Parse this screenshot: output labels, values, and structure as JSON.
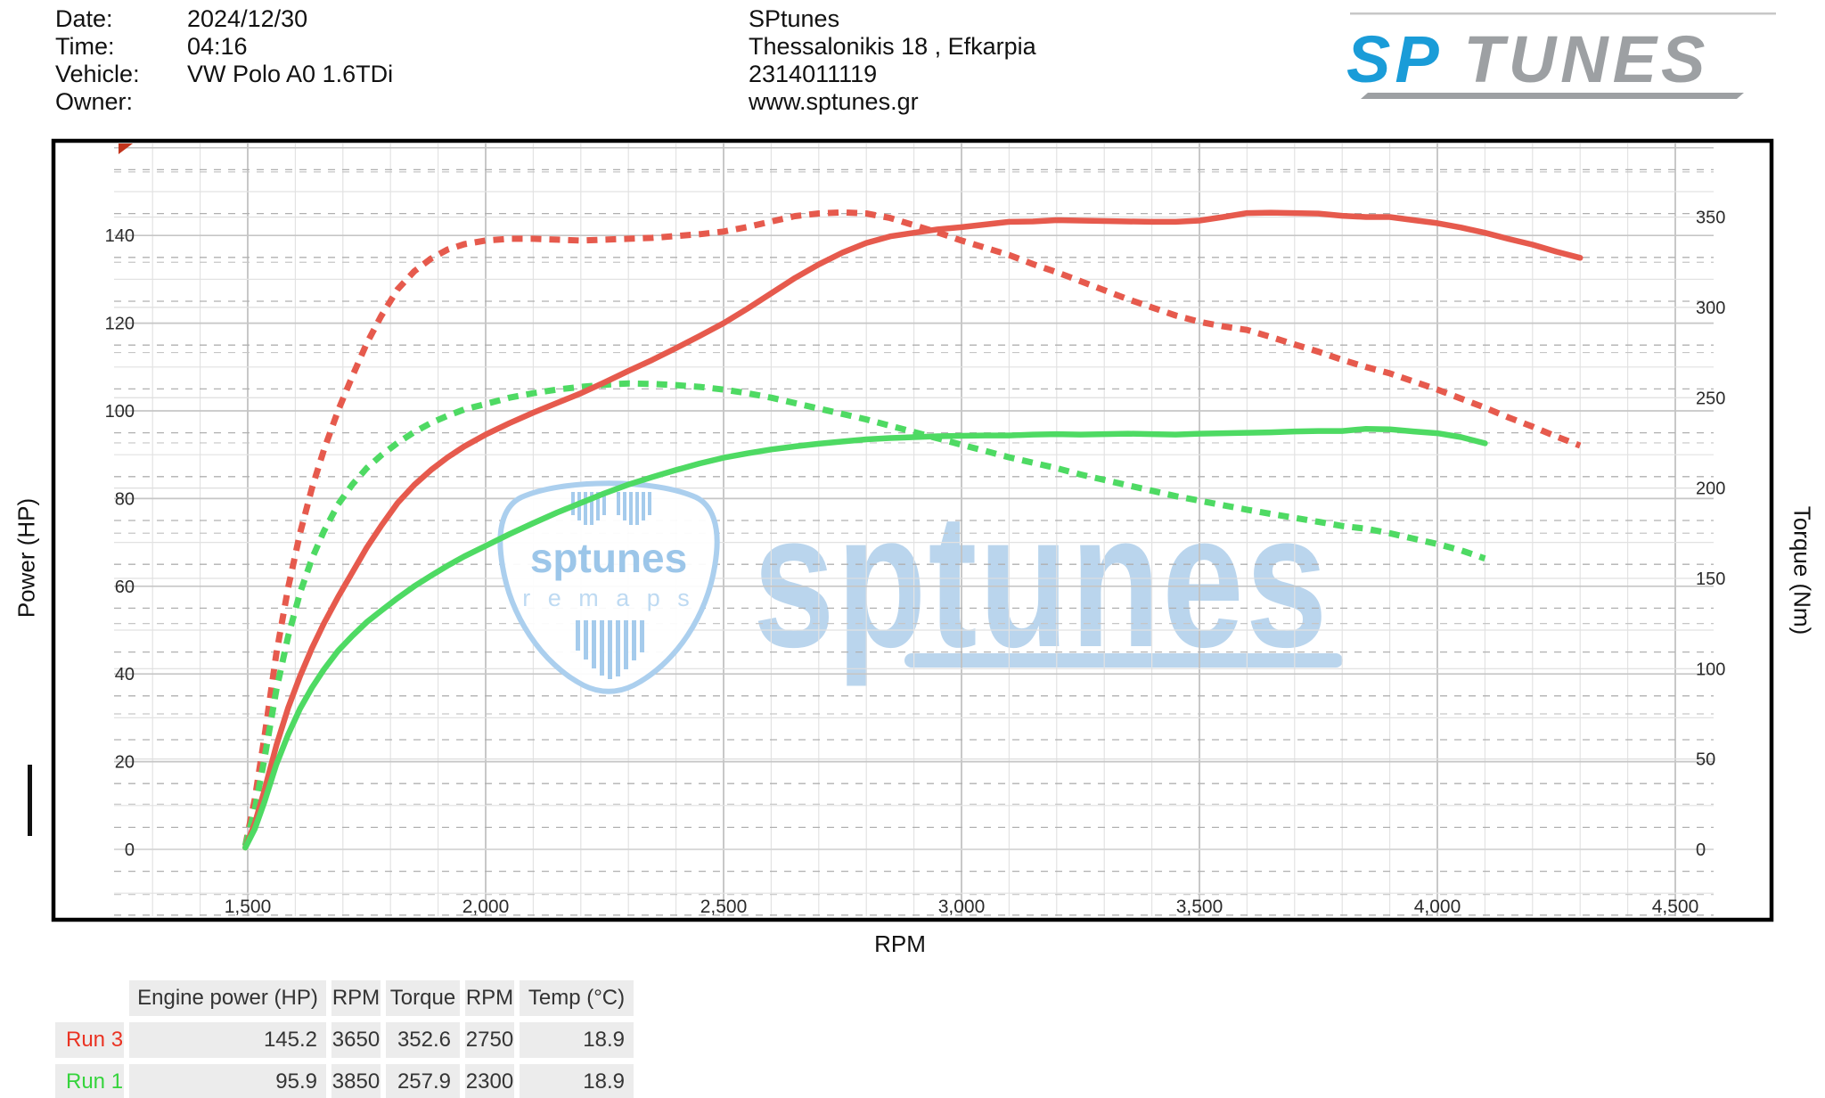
{
  "header": {
    "info_left": [
      {
        "label": "Date:",
        "value": "2024/12/30"
      },
      {
        "label": "Time:",
        "value": "04:16"
      },
      {
        "label": "Vehicle:",
        "value": "VW Polo A0 1.6TDi"
      },
      {
        "label": "Owner:",
        "value": ""
      }
    ],
    "info_center": [
      "SPtunes",
      "Thessalonikis 18 , Efkarpia",
      "2314011119",
      "www.sptunes.gr"
    ],
    "logo": {
      "sp": "SP",
      "tunes": "TUNES",
      "blue": "#1a9cd8",
      "gray": "#9da0a3"
    }
  },
  "watermark": {
    "big_text": "sptunes",
    "pick_title": "sptunes",
    "pick_subtitle": "r e m a p s",
    "color": "#a9cbe9"
  },
  "chart_data": {
    "type": "line",
    "xlabel": "RPM",
    "ylabel_left": "Power (HP)",
    "ylabel_right": "Torque (Nm)",
    "grid": true,
    "legend_position": "none",
    "x_ticks": [
      {
        "v": 1500,
        "label": "1,500"
      },
      {
        "v": 2000,
        "label": "2,000"
      },
      {
        "v": 2500,
        "label": "2,500"
      },
      {
        "v": 3000,
        "label": "3,000"
      },
      {
        "v": 3500,
        "label": "3,500"
      },
      {
        "v": 4000,
        "label": "4,000"
      },
      {
        "v": 4500,
        "label": "4,500"
      }
    ],
    "hp_ticks": [
      0,
      20,
      40,
      60,
      80,
      100,
      120,
      140
    ],
    "nm_ticks": [
      0,
      50,
      100,
      150,
      200,
      250,
      300,
      350
    ],
    "axis_ranges": {
      "rpm": [
        1219,
        4580
      ],
      "hp": [
        -15.6,
        161.6
      ],
      "nm": [
        -38,
        392
      ]
    },
    "series": [
      {
        "name": "Run 3 Torque (Nm)",
        "axis": "nm",
        "style": "dashed",
        "color": "#e65a4d",
        "points": [
          [
            1495,
            2
          ],
          [
            1515,
            28
          ],
          [
            1535,
            62
          ],
          [
            1560,
            108
          ],
          [
            1585,
            145
          ],
          [
            1610,
            175
          ],
          [
            1635,
            200
          ],
          [
            1660,
            221
          ],
          [
            1690,
            243
          ],
          [
            1720,
            262
          ],
          [
            1750,
            280
          ],
          [
            1780,
            295
          ],
          [
            1815,
            310
          ],
          [
            1850,
            320
          ],
          [
            1885,
            327
          ],
          [
            1920,
            332
          ],
          [
            1955,
            335
          ],
          [
            2000,
            337
          ],
          [
            2050,
            338
          ],
          [
            2100,
            338
          ],
          [
            2150,
            337.5
          ],
          [
            2200,
            337
          ],
          [
            2250,
            337.5
          ],
          [
            2300,
            338
          ],
          [
            2350,
            338.5
          ],
          [
            2400,
            339.5
          ],
          [
            2450,
            340.5
          ],
          [
            2500,
            342
          ],
          [
            2550,
            344.5
          ],
          [
            2600,
            347.5
          ],
          [
            2650,
            350.5
          ],
          [
            2700,
            352
          ],
          [
            2750,
            352.6
          ],
          [
            2800,
            352
          ],
          [
            2850,
            349.5
          ],
          [
            2900,
            345.5
          ],
          [
            2950,
            341.5
          ],
          [
            3000,
            337
          ],
          [
            3050,
            333
          ],
          [
            3100,
            329
          ],
          [
            3150,
            324
          ],
          [
            3200,
            319.5
          ],
          [
            3250,
            314.5
          ],
          [
            3300,
            309.5
          ],
          [
            3350,
            304.5
          ],
          [
            3400,
            300
          ],
          [
            3450,
            295.5
          ],
          [
            3500,
            292
          ],
          [
            3550,
            289.5
          ],
          [
            3600,
            287.5
          ],
          [
            3650,
            283.6
          ],
          [
            3700,
            279.5
          ],
          [
            3750,
            275.5
          ],
          [
            3800,
            271
          ],
          [
            3850,
            267
          ],
          [
            3900,
            263.5
          ],
          [
            3950,
            259
          ],
          [
            4000,
            254.5
          ],
          [
            4050,
            249.5
          ],
          [
            4100,
            244.5
          ],
          [
            4150,
            239
          ],
          [
            4200,
            234
          ],
          [
            4250,
            228.5
          ],
          [
            4300,
            223.5
          ]
        ]
      },
      {
        "name": "Run 1 Torque (Nm)",
        "axis": "nm",
        "style": "dashed",
        "color": "#4eda63",
        "points": [
          [
            1495,
            2
          ],
          [
            1515,
            22
          ],
          [
            1535,
            50
          ],
          [
            1560,
            88
          ],
          [
            1585,
            118
          ],
          [
            1610,
            142
          ],
          [
            1635,
            161
          ],
          [
            1660,
            176
          ],
          [
            1690,
            191
          ],
          [
            1720,
            202
          ],
          [
            1750,
            211
          ],
          [
            1780,
            218
          ],
          [
            1815,
            225
          ],
          [
            1850,
            231
          ],
          [
            1885,
            236
          ],
          [
            1920,
            240
          ],
          [
            1955,
            243.5
          ],
          [
            2000,
            246.5
          ],
          [
            2050,
            250
          ],
          [
            2100,
            252.5
          ],
          [
            2150,
            254.5
          ],
          [
            2200,
            256
          ],
          [
            2250,
            257.2
          ],
          [
            2300,
            257.9
          ],
          [
            2350,
            257.6
          ],
          [
            2400,
            257
          ],
          [
            2450,
            256
          ],
          [
            2500,
            254.5
          ],
          [
            2550,
            252.5
          ],
          [
            2600,
            250
          ],
          [
            2650,
            247
          ],
          [
            2700,
            244
          ],
          [
            2750,
            241
          ],
          [
            2800,
            238
          ],
          [
            2850,
            234.5
          ],
          [
            2900,
            231
          ],
          [
            2950,
            227.5
          ],
          [
            3000,
            224
          ],
          [
            3050,
            220.5
          ],
          [
            3100,
            217
          ],
          [
            3150,
            214
          ],
          [
            3200,
            211
          ],
          [
            3250,
            207.5
          ],
          [
            3300,
            204.5
          ],
          [
            3350,
            201.5
          ],
          [
            3400,
            198.5
          ],
          [
            3450,
            195.5
          ],
          [
            3500,
            193
          ],
          [
            3550,
            190.5
          ],
          [
            3600,
            188
          ],
          [
            3650,
            185.7
          ],
          [
            3700,
            183.5
          ],
          [
            3750,
            181.3
          ],
          [
            3800,
            179
          ],
          [
            3850,
            177.5
          ],
          [
            3900,
            175
          ],
          [
            3950,
            172
          ],
          [
            4000,
            169
          ],
          [
            4050,
            165.5
          ],
          [
            4100,
            161
          ]
        ]
      },
      {
        "name": "Run 3 Power (HP)",
        "axis": "hp",
        "style": "solid",
        "color": "#e65a4d",
        "points": [
          [
            1495,
            0.4
          ],
          [
            1515,
            6
          ],
          [
            1535,
            13.4
          ],
          [
            1560,
            23.6
          ],
          [
            1585,
            32.3
          ],
          [
            1610,
            39.5
          ],
          [
            1635,
            45.9
          ],
          [
            1660,
            51.5
          ],
          [
            1690,
            57.6
          ],
          [
            1720,
            63.2
          ],
          [
            1750,
            68.8
          ],
          [
            1780,
            73.7
          ],
          [
            1815,
            79
          ],
          [
            1850,
            83.1
          ],
          [
            1885,
            86.5
          ],
          [
            1920,
            89.4
          ],
          [
            1955,
            91.9
          ],
          [
            2000,
            94.6
          ],
          [
            2050,
            97.2
          ],
          [
            2100,
            99.6
          ],
          [
            2150,
            101.8
          ],
          [
            2200,
            104
          ],
          [
            2250,
            106.5
          ],
          [
            2300,
            109.1
          ],
          [
            2350,
            111.6
          ],
          [
            2400,
            114.3
          ],
          [
            2450,
            117.1
          ],
          [
            2500,
            120
          ],
          [
            2550,
            123.3
          ],
          [
            2600,
            126.8
          ],
          [
            2650,
            130.3
          ],
          [
            2700,
            133.4
          ],
          [
            2750,
            136.1
          ],
          [
            2800,
            138.3
          ],
          [
            2850,
            139.8
          ],
          [
            2900,
            140.6
          ],
          [
            2950,
            141.4
          ],
          [
            3000,
            141.9
          ],
          [
            3050,
            142.5
          ],
          [
            3100,
            143.1
          ],
          [
            3150,
            143.2
          ],
          [
            3200,
            143.5
          ],
          [
            3250,
            143.4
          ],
          [
            3300,
            143.3
          ],
          [
            3350,
            143.2
          ],
          [
            3400,
            143.1
          ],
          [
            3450,
            143.1
          ],
          [
            3500,
            143.4
          ],
          [
            3550,
            144.2
          ],
          [
            3600,
            145.1
          ],
          [
            3650,
            145.2
          ],
          [
            3700,
            145.1
          ],
          [
            3750,
            145
          ],
          [
            3800,
            144.5
          ],
          [
            3850,
            144.2
          ],
          [
            3900,
            144.2
          ],
          [
            3950,
            143.5
          ],
          [
            4000,
            142.8
          ],
          [
            4050,
            141.8
          ],
          [
            4100,
            140.6
          ],
          [
            4150,
            139.2
          ],
          [
            4200,
            137.9
          ],
          [
            4250,
            136.3
          ],
          [
            4300,
            134.9
          ]
        ]
      },
      {
        "name": "Run 1 Power (HP)",
        "axis": "hp",
        "style": "solid",
        "color": "#4eda63",
        "points": [
          [
            1495,
            0.4
          ],
          [
            1515,
            4.7
          ],
          [
            1535,
            10.8
          ],
          [
            1560,
            19.3
          ],
          [
            1585,
            26.2
          ],
          [
            1610,
            32.1
          ],
          [
            1635,
            36.9
          ],
          [
            1660,
            41
          ],
          [
            1690,
            45.3
          ],
          [
            1720,
            48.7
          ],
          [
            1750,
            51.8
          ],
          [
            1780,
            54.4
          ],
          [
            1815,
            57.3
          ],
          [
            1850,
            60
          ],
          [
            1885,
            62.4
          ],
          [
            1920,
            64.7
          ],
          [
            1955,
            66.8
          ],
          [
            2000,
            69.2
          ],
          [
            2050,
            71.9
          ],
          [
            2100,
            74.4
          ],
          [
            2150,
            76.8
          ],
          [
            2200,
            79
          ],
          [
            2250,
            81.2
          ],
          [
            2300,
            83.2
          ],
          [
            2350,
            84.9
          ],
          [
            2400,
            86.5
          ],
          [
            2450,
            88
          ],
          [
            2500,
            89.3
          ],
          [
            2550,
            90.3
          ],
          [
            2600,
            91.2
          ],
          [
            2650,
            91.9
          ],
          [
            2700,
            92.5
          ],
          [
            2750,
            93
          ],
          [
            2800,
            93.5
          ],
          [
            2850,
            93.8
          ],
          [
            2900,
            94
          ],
          [
            2950,
            94.2
          ],
          [
            3000,
            94.3
          ],
          [
            3050,
            94.4
          ],
          [
            3100,
            94.4
          ],
          [
            3150,
            94.6
          ],
          [
            3200,
            94.7
          ],
          [
            3250,
            94.6
          ],
          [
            3300,
            94.7
          ],
          [
            3350,
            94.8
          ],
          [
            3400,
            94.7
          ],
          [
            3450,
            94.6
          ],
          [
            3500,
            94.8
          ],
          [
            3550,
            94.9
          ],
          [
            3600,
            95
          ],
          [
            3650,
            95.1
          ],
          [
            3700,
            95.3
          ],
          [
            3750,
            95.4
          ],
          [
            3800,
            95.4
          ],
          [
            3850,
            95.9
          ],
          [
            3900,
            95.8
          ],
          [
            3950,
            95.3
          ],
          [
            4000,
            94.9
          ],
          [
            4050,
            94
          ],
          [
            4100,
            92.6
          ]
        ]
      }
    ]
  },
  "table": {
    "headers": [
      "",
      "Engine power (HP)",
      "RPM",
      "Torque",
      "RPM",
      "Temp (°C)"
    ],
    "align": [
      "blank",
      "center",
      "center",
      "center",
      "center",
      "center"
    ],
    "value_align": [
      "left",
      "right",
      "center",
      "right",
      "center",
      "right"
    ],
    "rows": [
      {
        "name": "Run 3",
        "color": "#ea3323",
        "values": [
          "145.2",
          "3650",
          "352.6",
          "2750",
          "18.9"
        ]
      },
      {
        "name": "Run 1",
        "color": "#35d43c",
        "values": [
          "95.9",
          "3850",
          "257.9",
          "2300",
          "18.9"
        ]
      }
    ]
  }
}
